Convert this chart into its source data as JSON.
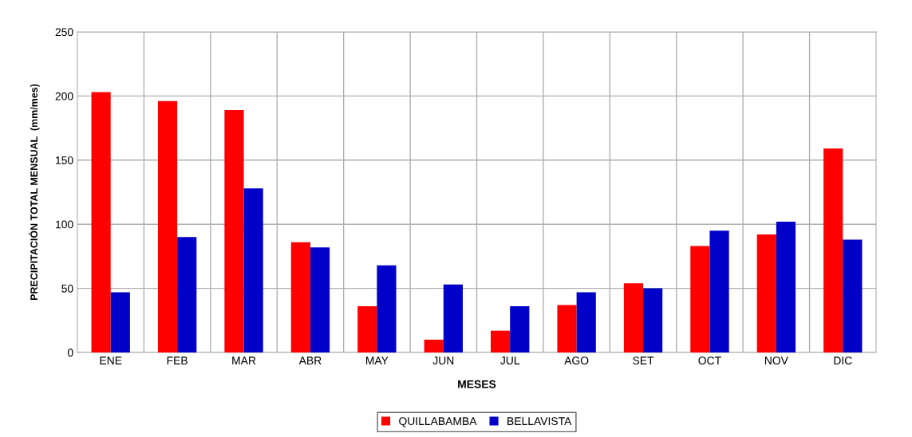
{
  "chart_data": {
    "type": "bar",
    "xlabel": "MESES",
    "ylabel": "PRECIPITACIÓN TOTAL MENSUAL  (mm/mes)",
    "categories": [
      "ENE",
      "FEB",
      "MAR",
      "ABR",
      "MAY",
      "JUN",
      "JUL",
      "AGO",
      "SET",
      "OCT",
      "NOV",
      "DIC"
    ],
    "series": [
      {
        "name": "QUILLABAMBA",
        "color": "#ff0000",
        "values": [
          203,
          196,
          189,
          86,
          36,
          10,
          17,
          37,
          54,
          83,
          92,
          159
        ]
      },
      {
        "name": "BELLAVISTA",
        "color": "#0000c8",
        "values": [
          47,
          90,
          128,
          82,
          68,
          53,
          36,
          47,
          50,
          95,
          102,
          88
        ]
      }
    ],
    "ylim": [
      0,
      250
    ],
    "yticks": [
      0,
      50,
      100,
      150,
      200,
      250
    ],
    "grid": true,
    "legend": "bottom"
  }
}
